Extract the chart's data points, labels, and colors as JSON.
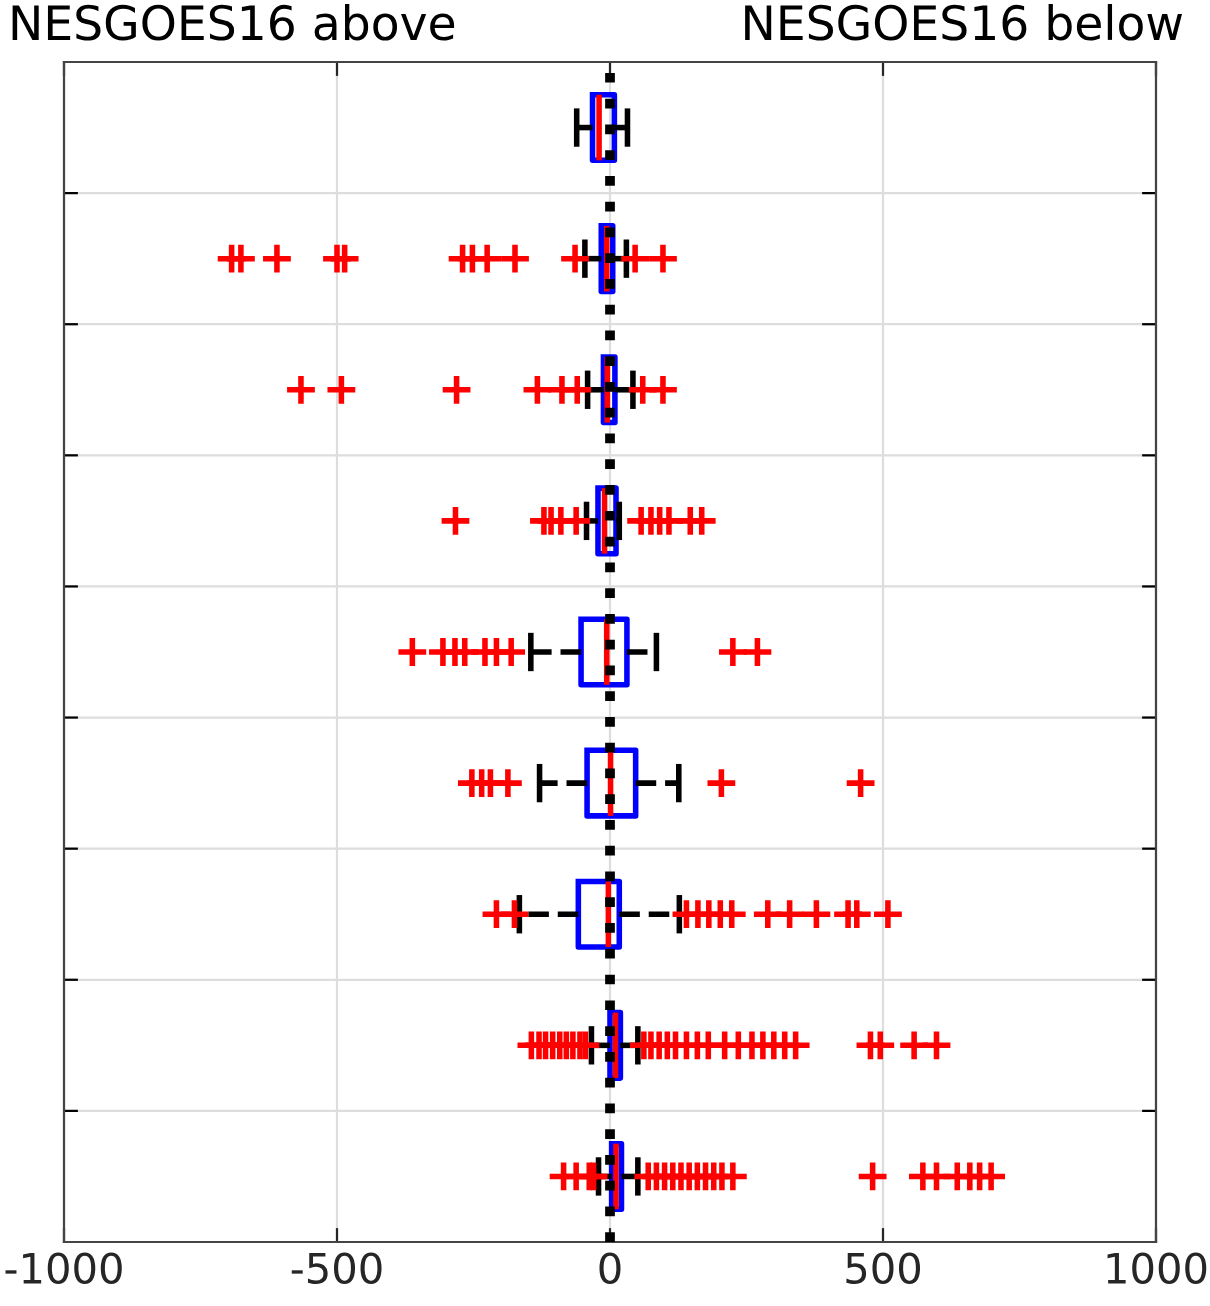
{
  "chart_data": {
    "type": "box",
    "orientation": "horizontal",
    "annotations": [
      "NESGOES16 above",
      "NESGOES16 below"
    ],
    "categories": [
      null,
      null,
      null,
      null,
      null,
      null,
      null,
      null,
      null
    ],
    "series": [
      {
        "color": "#0000ff",
        "boxes": [
          {
            "low": -61,
            "q1": -32,
            "median": -20,
            "q3": 8,
            "high": 32
          },
          {
            "low": -46,
            "q1": -16,
            "median": -6,
            "q3": 5,
            "high": 30,
            "outliers": [
              -693,
              -676,
              -610,
              -500,
              -486,
              -270,
              -252,
              -225,
              -174,
              -64,
              46,
              97
            ]
          },
          {
            "low": -41,
            "q1": -12,
            "median": -5,
            "q3": 9,
            "high": 42,
            "outliers": [
              -566,
              -492,
              -281,
              -133,
              -88,
              -60,
              60,
              97
            ]
          },
          {
            "low": -43,
            "q1": -22,
            "median": -10,
            "q3": 11,
            "high": 17,
            "outliers": [
              -283,
              -121,
              -108,
              -90,
              -62,
              57,
              75,
              91,
              108,
              147,
              168
            ]
          },
          {
            "low": -145,
            "q1": -53,
            "median": -6,
            "q3": 31,
            "high": 85,
            "outliers": [
              -362,
              -306,
              -284,
              -266,
              -229,
              -208,
              -181,
              225,
              270
            ]
          },
          {
            "low": -129,
            "q1": -42,
            "median": 1,
            "q3": 47,
            "high": 126,
            "outliers": [
              -253,
              -235,
              -219,
              -187,
              204,
              459
            ]
          },
          {
            "low": -166,
            "q1": -58,
            "median": -3,
            "q3": 17,
            "high": 127,
            "outliers": [
              -208,
              -175,
              140,
              161,
              181,
              202,
              223,
              289,
              329,
              378,
              436,
              452,
              509
            ]
          },
          {
            "low": -34,
            "q1": 0,
            "median": 10,
            "q3": 19,
            "high": 51,
            "outliers": [
              -144,
              -130,
              -118,
              -105,
              -92,
              -80,
              -68,
              -55,
              -45,
              62,
              75,
              90,
              105,
              120,
              140,
              160,
              180,
              210,
              235,
              260,
              280,
              300,
              320,
              340,
              477,
              495,
              557,
              598
            ]
          },
          {
            "low": -21,
            "q1": 3,
            "median": 11,
            "q3": 21,
            "high": 51,
            "outliers": [
              -85,
              -62,
              -38,
              -30,
              70,
              85,
              100,
              115,
              130,
              145,
              160,
              175,
              190,
              205,
              225,
              481,
              573,
              598,
              636,
              659,
              677,
              698
            ]
          }
        ]
      }
    ],
    "xlim": [
      -1000,
      1000
    ],
    "xticks": [
      -1000,
      -500,
      0,
      500,
      1000
    ],
    "ref_lines": [
      {
        "axis": "x",
        "value": 0,
        "color": "#000000",
        "line_style": "dotted"
      }
    ],
    "grid": true,
    "tick_labels": "x"
  }
}
